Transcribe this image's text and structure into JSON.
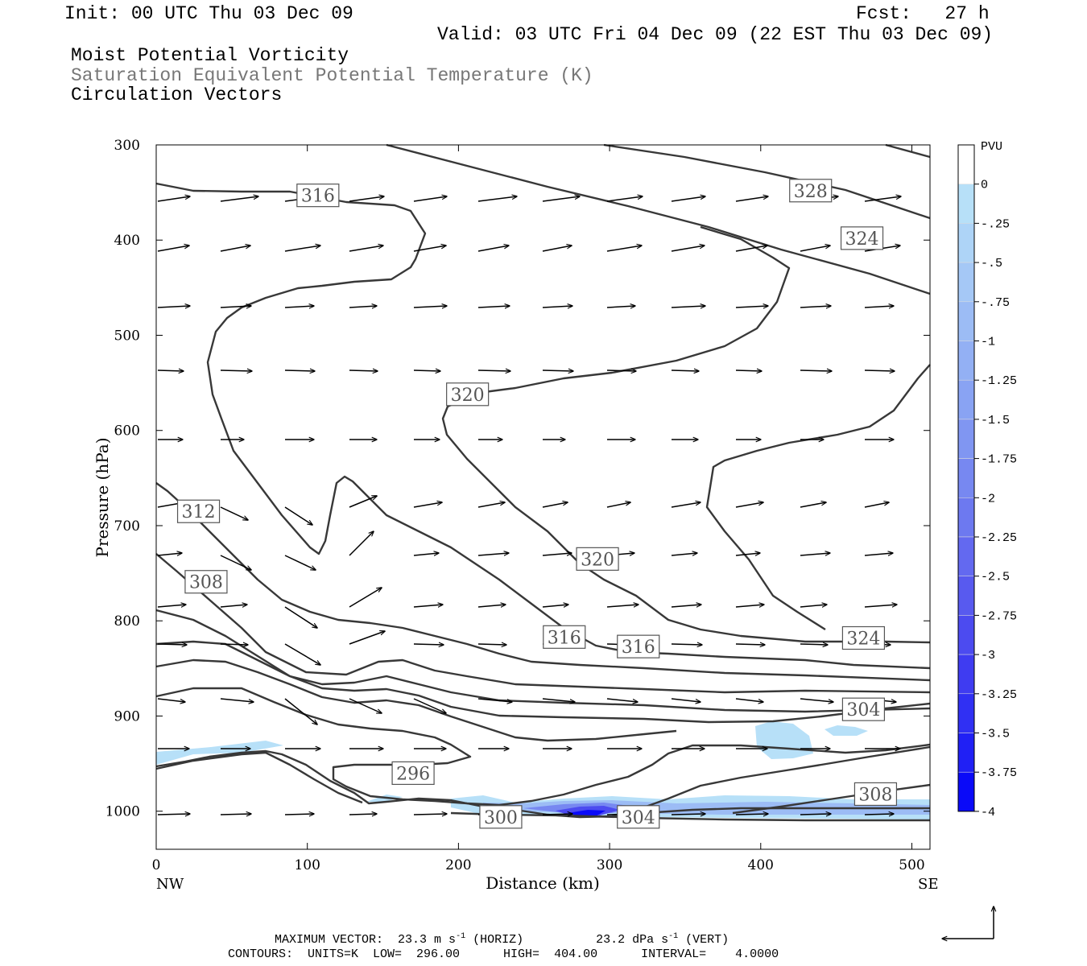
{
  "header": {
    "init": "Init: 00 UTC Thu 03 Dec 09",
    "fcst": "Fcst:   27 h",
    "valid": "Valid: 03 UTC Fri 04 Dec 09 (22 EST Thu 03 Dec 09)",
    "fields": [
      "Moist Potential Vorticity",
      "Saturation Equivalent Potential Temperature (K)",
      "Circulation Vectors"
    ]
  },
  "footer": {
    "max_vector_label": "MAXIMUM VECTOR:",
    "max_horiz": "23.3 m s",
    "max_horiz_exp": "-1",
    "max_horiz_suffix": "(HORIZ)",
    "max_vert": "23.2 dPa s",
    "max_vert_exp": "-1",
    "max_vert_suffix": "(VERT)",
    "contours": "CONTOURS:  UNITS=K  LOW=  296.00      HIGH=  404.00      INTERVAL=    4.0000"
  },
  "chart_data": {
    "type": "contour",
    "xlabel": "Distance (km)",
    "ylabel": "Pressure (hPa)",
    "xlim": [
      0,
      512
    ],
    "ylim": [
      1040,
      300
    ],
    "x_ticks": [
      0,
      100,
      200,
      300,
      400,
      500
    ],
    "y_ticks": [
      300,
      400,
      500,
      600,
      700,
      800,
      900,
      1000
    ],
    "x_end_labels": {
      "left": "NW",
      "right": "SE"
    },
    "colorbar": {
      "title": "PVU",
      "labels": [
        "0",
        "-.25",
        "-.5",
        "-.75",
        "-1",
        "-1.25",
        "-1.5",
        "-1.75",
        "-2",
        "-2.25",
        "-2.5",
        "-2.75",
        "-3",
        "-3.25",
        "-3.5",
        "-3.75",
        "-4"
      ],
      "colors": [
        "#ffffff",
        "#b7e0f8",
        "#aed4f7",
        "#a5c8f6",
        "#9cbcf5",
        "#93b0f4",
        "#89a3f3",
        "#8096f2",
        "#7788f1",
        "#6d79f0",
        "#6369f0",
        "#585aef",
        "#4c4bf0",
        "#3f3cf1",
        "#3030f3",
        "#2020f5",
        "#0a0af8"
      ]
    },
    "contour_labels": [
      {
        "text": "316",
        "x": 107,
        "p": 353
      },
      {
        "text": "328",
        "x": 433,
        "p": 348
      },
      {
        "text": "324",
        "x": 467,
        "p": 398
      },
      {
        "text": "320",
        "x": 206,
        "p": 562
      },
      {
        "text": "312",
        "x": 28,
        "p": 685
      },
      {
        "text": "320",
        "x": 292,
        "p": 735
      },
      {
        "text": "308",
        "x": 33,
        "p": 759
      },
      {
        "text": "316",
        "x": 270,
        "p": 817
      },
      {
        "text": "316",
        "x": 319,
        "p": 827
      },
      {
        "text": "324",
        "x": 468,
        "p": 818
      },
      {
        "text": "304",
        "x": 468,
        "p": 893
      },
      {
        "text": "296",
        "x": 170,
        "p": 960
      },
      {
        "text": "308",
        "x": 476,
        "p": 982
      },
      {
        "text": "300",
        "x": 228,
        "p": 1006
      },
      {
        "text": "304",
        "x": 319,
        "p": 1006
      }
    ]
  }
}
